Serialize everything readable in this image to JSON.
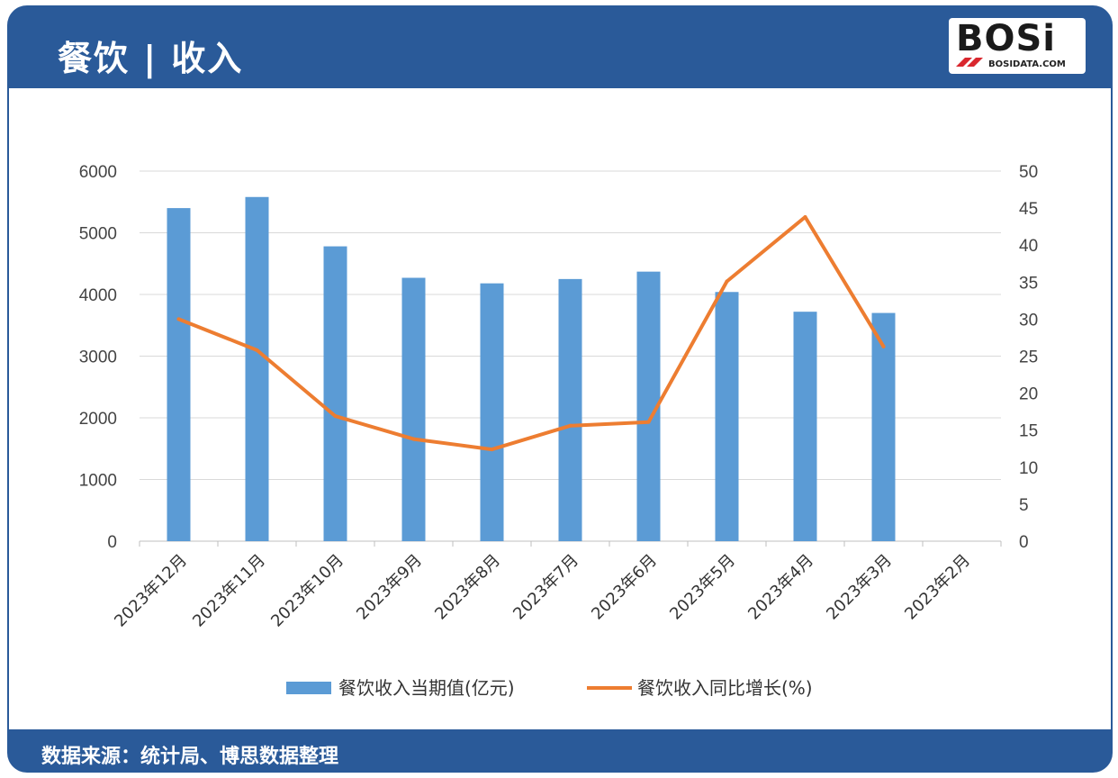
{
  "header": {
    "title": "餐饮 | 收入"
  },
  "logo": {
    "text": "BOSi",
    "subtext": "BOSIDATA.COM"
  },
  "footer": {
    "source": "数据来源：统计局、博思数据整理"
  },
  "colors": {
    "bar": "#5b9bd5",
    "line": "#ed7d31",
    "header": "#2a5a99",
    "grid": "#d9d9d9"
  },
  "chart_data": {
    "type": "bar",
    "categories": [
      "2023年12月",
      "2023年11月",
      "2023年10月",
      "2023年9月",
      "2023年8月",
      "2023年7月",
      "2023年6月",
      "2023年5月",
      "2023年4月",
      "2023年3月",
      "2023年2月"
    ],
    "series": [
      {
        "name": "餐饮收入当期值(亿元)",
        "type": "bar",
        "axis": "left",
        "values": [
          5400,
          5580,
          4780,
          4270,
          4180,
          4250,
          4370,
          4040,
          3720,
          3700,
          null
        ]
      },
      {
        "name": "餐饮收入同比增长(%)",
        "type": "line",
        "axis": "right",
        "values": [
          30.0,
          25.8,
          16.9,
          13.8,
          12.4,
          15.6,
          16.1,
          35.1,
          43.8,
          26.3,
          null
        ]
      }
    ],
    "y_left": {
      "min": 0,
      "max": 6000,
      "ticks": [
        0,
        1000,
        2000,
        3000,
        4000,
        5000,
        6000
      ]
    },
    "y_right": {
      "min": 0,
      "max": 50,
      "ticks": [
        0,
        5,
        10,
        15,
        20,
        25,
        30,
        35,
        40,
        45,
        50
      ]
    },
    "grid": true,
    "legend_position": "bottom"
  }
}
